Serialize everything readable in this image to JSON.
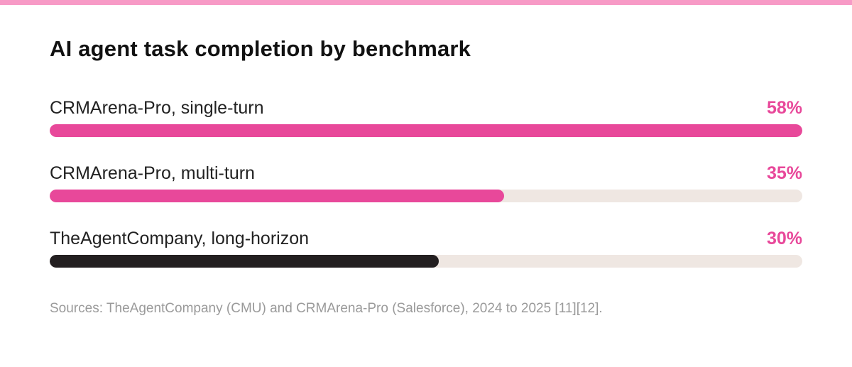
{
  "colors": {
    "stripe": "#f79ac6",
    "accent": "#e8489a",
    "dark_bar": "#231f20",
    "track": "#efe7e2"
  },
  "title": "AI agent task completion by benchmark",
  "source": "Sources: TheAgentCompany (CMU) and CRMArena-Pro (Salesforce), 2024 to 2025 [11][12].",
  "chart_data": {
    "type": "bar",
    "orientation": "horizontal",
    "title": "AI agent task completion by benchmark",
    "categories": [
      "CRMArena-Pro, single-turn",
      "CRMArena-Pro, multi-turn",
      "TheAgentCompany, long-horizon"
    ],
    "values": [
      58,
      35,
      30
    ],
    "value_labels": [
      "58%",
      "35%",
      "30%"
    ],
    "bar_colors": [
      "#e8489a",
      "#e8489a",
      "#231f20"
    ],
    "label_colors": [
      "#e8489a",
      "#e8489a",
      "#e8489a"
    ],
    "xlim": [
      0,
      58
    ],
    "grid": false,
    "legend": "none"
  }
}
